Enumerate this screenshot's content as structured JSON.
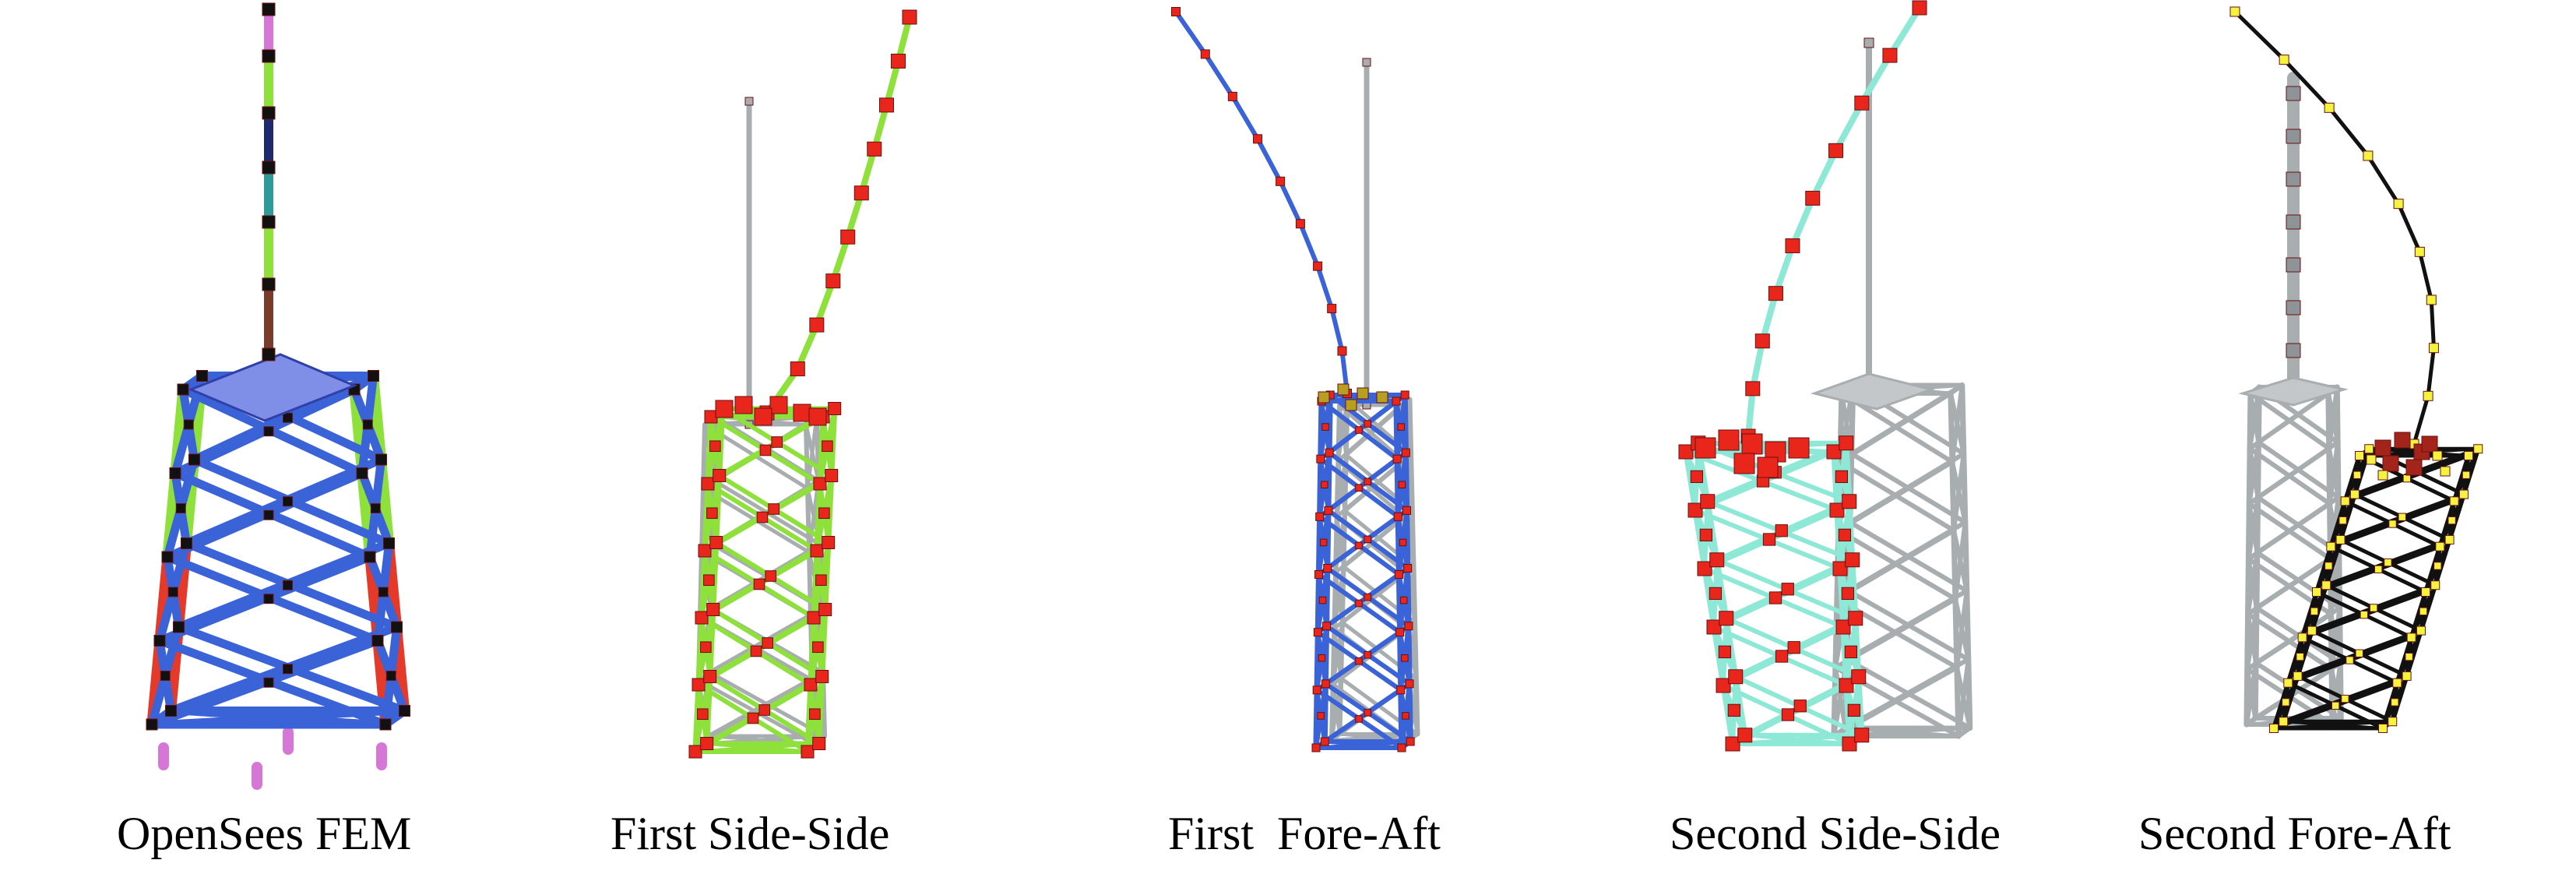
{
  "figure": {
    "panels": [
      {
        "id": "fem",
        "caption": "OpenSees FEM"
      },
      {
        "id": "ss1",
        "caption": "First Side-Side"
      },
      {
        "id": "fa1",
        "caption": "First  Fore-Aft"
      },
      {
        "id": "ss2",
        "caption": "Second Side-Side"
      },
      {
        "id": "fa2",
        "caption": "Second Fore-Aft"
      }
    ],
    "colors": {
      "undeformed": "#a8adb0",
      "brace_blue": "#3b63d8",
      "leg_green": "#8ee03a",
      "leg_red": "#e53a2a",
      "deck_blue": "#7f8ee6",
      "mode_ss1": "#8ee03a",
      "mode_fa1": "#3b63d8",
      "mode_ss2": "#8de8d6",
      "mode_fa2": "#111111",
      "node_red": "#e8261c",
      "node_yellow": "#f4f440",
      "node_black": "#111111",
      "pile_magenta": "#d676d6",
      "tower_navy": "#1d2a6b",
      "tower_teal": "#2e9a9a",
      "tower_brown": "#7a3b2a"
    }
  }
}
